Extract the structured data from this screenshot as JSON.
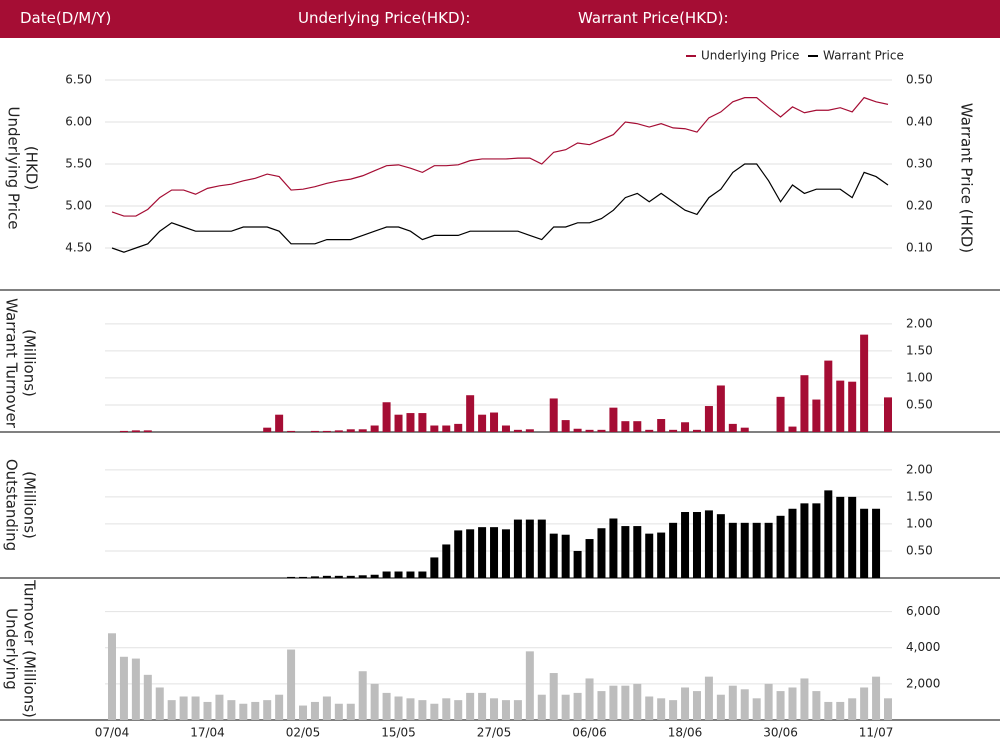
{
  "header": [
    "Date(D/M/Y)",
    "Underlying Price(HKD):",
    "Warrant Price(HKD):"
  ],
  "chart_data": [
    {
      "type": "line",
      "y_label": [
        "Underlying Price",
        "(HKD)"
      ],
      "y2_label": [
        "Warrant  Price (HKD)"
      ],
      "legend": "top-right",
      "ylim": [
        4.4,
        6.6
      ],
      "yticks": [
        {
          "value": 4.5,
          "label": "4.50"
        },
        {
          "value": 5,
          "label": "5.00"
        },
        {
          "value": 5.5,
          "label": "5.50"
        },
        {
          "value": 6,
          "label": "6.00"
        },
        {
          "value": 6.5,
          "label": "6.50"
        }
      ],
      "y2lim": [
        0.08,
        0.52
      ],
      "y2ticks": [
        {
          "value": 0.1,
          "label": "0.10"
        },
        {
          "value": 0.2,
          "label": "0.20"
        },
        {
          "value": 0.3,
          "label": "0.30"
        },
        {
          "value": 0.4,
          "label": "0.40"
        },
        {
          "value": 0.5,
          "label": "0.50"
        }
      ],
      "grid": true,
      "series": [
        {
          "name": "Underlying Price",
          "color": "#a50d34",
          "values": [
            4.93,
            4.88,
            4.88,
            4.96,
            5.1,
            5.19,
            5.19,
            5.14,
            5.21,
            5.24,
            5.26,
            5.3,
            5.33,
            5.38,
            5.35,
            5.19,
            5.2,
            5.23,
            5.27,
            5.3,
            5.32,
            5.36,
            5.42,
            5.48,
            5.49,
            5.45,
            5.4,
            5.48,
            5.48,
            5.49,
            5.54,
            5.56,
            5.56,
            5.56,
            5.57,
            5.57,
            5.5,
            5.64,
            5.67,
            5.75,
            5.73,
            5.79,
            5.85,
            6.0,
            5.98,
            5.94,
            5.98,
            5.93,
            5.92,
            5.88,
            6.05,
            6.12,
            6.24,
            6.29,
            6.29,
            6.17,
            6.06,
            6.18,
            6.11,
            6.14,
            6.14,
            6.17,
            6.12,
            6.29,
            6.24,
            6.21
          ]
        },
        {
          "name": "Warrant Price",
          "color": "#000000",
          "axis": "y2",
          "values": [
            0.1,
            0.09,
            0.1,
            0.11,
            0.14,
            0.16,
            0.15,
            0.14,
            0.14,
            0.14,
            0.14,
            0.15,
            0.15,
            0.15,
            0.14,
            0.11,
            0.11,
            0.11,
            0.12,
            0.12,
            0.12,
            0.13,
            0.14,
            0.15,
            0.15,
            0.14,
            0.12,
            0.13,
            0.13,
            0.13,
            0.14,
            0.14,
            0.14,
            0.14,
            0.14,
            0.13,
            0.12,
            0.15,
            0.15,
            0.16,
            0.16,
            0.17,
            0.19,
            0.22,
            0.23,
            0.21,
            0.23,
            0.21,
            0.19,
            0.18,
            0.22,
            0.24,
            0.28,
            0.3,
            0.3,
            0.26,
            0.21,
            0.25,
            0.23,
            0.24,
            0.24,
            0.24,
            0.22,
            0.28,
            0.27,
            0.25
          ]
        }
      ]
    },
    {
      "type": "bar",
      "y_label": [
        "Warrant  Turnover",
        "(Millions)"
      ],
      "color": "#a50d34",
      "ylim": [
        0,
        2.2
      ],
      "grid": true,
      "yticks": [
        {
          "value": 0.5,
          "label": "0.50"
        },
        {
          "value": 1,
          "label": "1.00"
        },
        {
          "value": 1.5,
          "label": "1.50"
        },
        {
          "value": 2,
          "label": "2.00"
        }
      ],
      "values": [
        0,
        0.02,
        0.03,
        0.03,
        0,
        0,
        0,
        0,
        0,
        0,
        0,
        0,
        0,
        0.08,
        0.32,
        0.02,
        0,
        0.02,
        0.02,
        0.03,
        0.05,
        0.05,
        0.12,
        0.55,
        0.32,
        0.35,
        0.35,
        0.12,
        0.12,
        0.15,
        0.68,
        0.32,
        0.36,
        0.12,
        0.04,
        0.05,
        0,
        0.62,
        0.22,
        0.06,
        0.04,
        0.04,
        0.45,
        0.2,
        0.2,
        0.04,
        0.24,
        0.04,
        0.18,
        0.04,
        0.48,
        0.86,
        0.15,
        0.08,
        0,
        0,
        0.65,
        0.1,
        1.05,
        0.6,
        1.32,
        0.95,
        0.93,
        1.8,
        0,
        0.64
      ]
    },
    {
      "type": "bar",
      "y_label": [
        "Outstanding",
        "(Millions)"
      ],
      "color": "#000000",
      "ylim": [
        0,
        2.2
      ],
      "grid": true,
      "yticks": [
        {
          "value": 0.5,
          "label": "0.50"
        },
        {
          "value": 1,
          "label": "1.00"
        },
        {
          "value": 1.5,
          "label": "1.50"
        },
        {
          "value": 2,
          "label": "2.00"
        }
      ],
      "values": [
        0,
        0,
        0,
        0,
        0,
        0,
        0,
        0,
        0,
        0,
        0,
        0,
        0,
        0,
        0,
        0.02,
        0.02,
        0.03,
        0.04,
        0.04,
        0.04,
        0.05,
        0.06,
        0.12,
        0.12,
        0.12,
        0.12,
        0.38,
        0.62,
        0.88,
        0.9,
        0.94,
        0.94,
        0.9,
        1.08,
        1.08,
        1.08,
        0.82,
        0.8,
        0.5,
        0.72,
        0.92,
        1.1,
        0.96,
        0.96,
        0.82,
        0.84,
        1.02,
        1.22,
        1.22,
        1.25,
        1.18,
        1.02,
        1.02,
        1.02,
        1.02,
        1.15,
        1.28,
        1.38,
        1.38,
        1.62,
        1.5,
        1.5,
        1.28,
        1.28,
        0
      ]
    },
    {
      "type": "bar",
      "y_label": [
        "Underlying",
        "Turnover (Millions)"
      ],
      "color": "#bdbdbd",
      "ylim": [
        0,
        6200
      ],
      "grid": true,
      "yticks": [
        {
          "value": 2000,
          "label": "2,000"
        },
        {
          "value": 4000,
          "label": "4,000"
        },
        {
          "value": 6000,
          "label": "6,000"
        }
      ],
      "categories": [
        "07/04",
        null,
        null,
        null,
        null,
        null,
        null,
        null,
        "17/04",
        null,
        null,
        null,
        null,
        null,
        null,
        null,
        "02/05",
        null,
        null,
        null,
        null,
        null,
        null,
        null,
        "15/05",
        null,
        null,
        null,
        null,
        null,
        null,
        null,
        "27/05",
        null,
        null,
        null,
        null,
        null,
        null,
        null,
        "06/06",
        null,
        null,
        null,
        null,
        null,
        null,
        null,
        "18/06",
        null,
        null,
        null,
        null,
        null,
        null,
        null,
        "30/06",
        null,
        null,
        null,
        null,
        null,
        null,
        null,
        "11/07",
        null
      ],
      "values": [
        4800,
        3500,
        3400,
        2500,
        1800,
        1100,
        1300,
        1300,
        1000,
        1400,
        1100,
        900,
        1000,
        1100,
        1400,
        3900,
        800,
        1000,
        1300,
        900,
        900,
        2700,
        2000,
        1500,
        1300,
        1200,
        1100,
        900,
        1200,
        1100,
        1500,
        1500,
        1200,
        1100,
        1100,
        3800,
        1400,
        2600,
        1400,
        1500,
        2300,
        1600,
        1900,
        1900,
        2000,
        1300,
        1200,
        1100,
        1800,
        1600,
        2400,
        1400,
        1900,
        1700,
        1200,
        2000,
        1600,
        1800,
        2300,
        1600,
        1000,
        1000,
        1200,
        1800,
        2400,
        1200
      ]
    }
  ]
}
